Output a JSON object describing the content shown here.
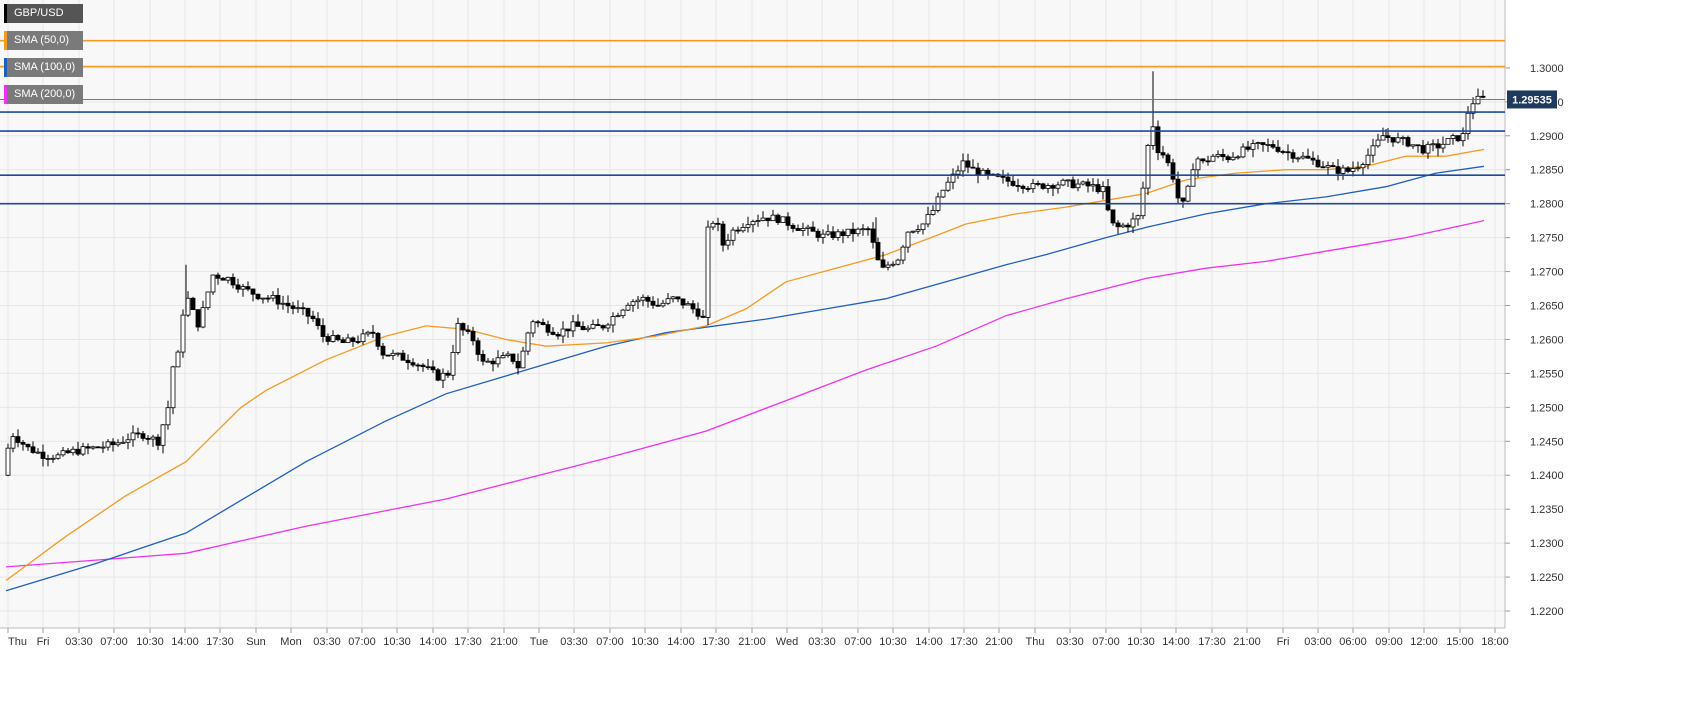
{
  "chart_data": {
    "type": "candlestick",
    "instrument": "GBP/USD",
    "ylim": [
      1.2175,
      1.31
    ],
    "y_ticks": [
      "1.2200",
      "1.2250",
      "1.2300",
      "1.2350",
      "1.2400",
      "1.2450",
      "1.2500",
      "1.2550",
      "1.2600",
      "1.2650",
      "1.2700",
      "1.2750",
      "1.2800",
      "1.2850",
      "1.2900",
      "1.2950",
      "1.3000"
    ],
    "x_ticks": [
      "Thu",
      "Fri",
      "03:30",
      "07:00",
      "10:30",
      "14:00",
      "17:30",
      "Sun",
      "Mon",
      "03:30",
      "07:00",
      "10:30",
      "14:00",
      "17:30",
      "21:00",
      "Tue",
      "03:30",
      "07:00",
      "10:30",
      "14:00",
      "17:30",
      "21:00",
      "Wed",
      "03:30",
      "07:00",
      "10:30",
      "14:00",
      "17:30",
      "21:00",
      "Thu",
      "03:30",
      "07:00",
      "10:30",
      "14:00",
      "17:30",
      "21:00",
      "Fri",
      "03:00",
      "06:00",
      "09:00",
      "12:00",
      "15:00",
      "18:00"
    ],
    "last_price": "1.29535",
    "grid": true,
    "colors": {
      "up_candle": "#ffffff",
      "down_candle": "#000000",
      "sma50": "#f59a23",
      "sma100": "#1f5fbf",
      "sma200": "#ee33ee",
      "orange_levels": "#f59a23",
      "blue_levels": "#1a4a9a",
      "price_tag": "#1f3a5f"
    },
    "legend": [
      {
        "label": "GBP/USD",
        "color": "#000000"
      },
      {
        "label": "SMA (50,0)",
        "color": "#f59a23"
      },
      {
        "label": "SMA (100,0)",
        "color": "#1f5fbf"
      },
      {
        "label": "SMA (200,0)",
        "color": "#ee33ee"
      }
    ],
    "horizontal_levels": [
      {
        "value": 1.304,
        "color": "#f59a23"
      },
      {
        "value": 1.3002,
        "color": "#f59a23"
      },
      {
        "value": 1.2935,
        "color": "#1a4a9a"
      },
      {
        "value": 1.2907,
        "color": "#1a4a9a"
      },
      {
        "value": 1.2842,
        "color": "#1a4a9a"
      },
      {
        "value": 1.28,
        "color": "#1a4a9a"
      }
    ],
    "price_path": [
      [
        0,
        1.24
      ],
      [
        5,
        1.244
      ],
      [
        10,
        1.246
      ],
      [
        25,
        1.244
      ],
      [
        40,
        1.243
      ],
      [
        55,
        1.2428
      ],
      [
        70,
        1.2435
      ],
      [
        90,
        1.244
      ],
      [
        110,
        1.2445
      ],
      [
        125,
        1.2455
      ],
      [
        140,
        1.246
      ],
      [
        155,
        1.245
      ],
      [
        165,
        1.25
      ],
      [
        170,
        1.256
      ],
      [
        176,
        1.258
      ],
      [
        182,
        1.267
      ],
      [
        190,
        1.264
      ],
      [
        196,
        1.262
      ],
      [
        203,
        1.266
      ],
      [
        210,
        1.2695
      ],
      [
        225,
        1.269
      ],
      [
        240,
        1.2675
      ],
      [
        255,
        1.2665
      ],
      [
        270,
        1.266
      ],
      [
        285,
        1.265
      ],
      [
        300,
        1.264
      ],
      [
        310,
        1.263
      ],
      [
        320,
        1.2605
      ],
      [
        340,
        1.2595
      ],
      [
        355,
        1.26
      ],
      [
        370,
        1.261
      ],
      [
        380,
        1.258
      ],
      [
        395,
        1.2575
      ],
      [
        410,
        1.2568
      ],
      [
        420,
        1.256
      ],
      [
        435,
        1.2545
      ],
      [
        445,
        1.255
      ],
      [
        455,
        1.262
      ],
      [
        462,
        1.261
      ],
      [
        470,
        1.26
      ],
      [
        480,
        1.2565
      ],
      [
        495,
        1.257
      ],
      [
        508,
        1.2575
      ],
      [
        515,
        1.256
      ],
      [
        522,
        1.259
      ],
      [
        528,
        1.263
      ],
      [
        540,
        1.262
      ],
      [
        555,
        1.261
      ],
      [
        570,
        1.262
      ],
      [
        585,
        1.2615
      ],
      [
        600,
        1.262
      ],
      [
        615,
        1.264
      ],
      [
        625,
        1.2655
      ],
      [
        640,
        1.266
      ],
      [
        655,
        1.265
      ],
      [
        670,
        1.266
      ],
      [
        685,
        1.265
      ],
      [
        695,
        1.264
      ],
      [
        700,
        1.263
      ],
      [
        705,
        1.276
      ],
      [
        712,
        1.278
      ],
      [
        720,
        1.274
      ],
      [
        730,
        1.276
      ],
      [
        745,
        1.2775
      ],
      [
        760,
        1.278
      ],
      [
        775,
        1.2778
      ],
      [
        790,
        1.2768
      ],
      [
        805,
        1.276
      ],
      [
        820,
        1.2752
      ],
      [
        835,
        1.2755
      ],
      [
        850,
        1.2758
      ],
      [
        865,
        1.2762
      ],
      [
        870,
        1.274
      ],
      [
        878,
        1.27
      ],
      [
        885,
        1.271
      ],
      [
        895,
        1.272
      ],
      [
        905,
        1.276
      ],
      [
        920,
        1.277
      ],
      [
        930,
        1.279
      ],
      [
        940,
        1.282
      ],
      [
        950,
        1.284
      ],
      [
        960,
        1.286
      ],
      [
        970,
        1.285
      ],
      [
        985,
        1.284
      ],
      [
        1000,
        1.2835
      ],
      [
        1015,
        1.283
      ],
      [
        1030,
        1.2825
      ],
      [
        1045,
        1.2828
      ],
      [
        1060,
        1.283
      ],
      [
        1075,
        1.2828
      ],
      [
        1090,
        1.2825
      ],
      [
        1100,
        1.282
      ],
      [
        1108,
        1.277
      ],
      [
        1115,
        1.2765
      ],
      [
        1125,
        1.277
      ],
      [
        1135,
        1.278
      ],
      [
        1142,
        1.284
      ],
      [
        1148,
        1.293
      ],
      [
        1155,
        1.288
      ],
      [
        1162,
        1.287
      ],
      [
        1170,
        1.284
      ],
      [
        1178,
        1.279
      ],
      [
        1185,
        1.282
      ],
      [
        1192,
        1.287
      ],
      [
        1200,
        1.286
      ],
      [
        1210,
        1.287
      ],
      [
        1225,
        1.2868
      ],
      [
        1240,
        1.2878
      ],
      [
        1255,
        1.2885
      ],
      [
        1270,
        1.2885
      ],
      [
        1285,
        1.2875
      ],
      [
        1300,
        1.2868
      ],
      [
        1315,
        1.286
      ],
      [
        1330,
        1.285
      ],
      [
        1345,
        1.2848
      ],
      [
        1358,
        1.286
      ],
      [
        1370,
        1.288
      ],
      [
        1380,
        1.29
      ],
      [
        1392,
        1.2895
      ],
      [
        1405,
        1.289
      ],
      [
        1420,
        1.288
      ],
      [
        1435,
        1.2885
      ],
      [
        1450,
        1.2895
      ],
      [
        1460,
        1.29
      ],
      [
        1465,
        1.2935
      ],
      [
        1470,
        1.295
      ],
      [
        1478,
        1.2955
      ]
    ],
    "sma50": [
      [
        0,
        1.2245
      ],
      [
        60,
        1.231
      ],
      [
        120,
        1.237
      ],
      [
        180,
        1.242
      ],
      [
        235,
        1.25
      ],
      [
        260,
        1.2525
      ],
      [
        320,
        1.257
      ],
      [
        380,
        1.2605
      ],
      [
        420,
        1.262
      ],
      [
        460,
        1.2615
      ],
      [
        500,
        1.26
      ],
      [
        540,
        1.259
      ],
      [
        600,
        1.2595
      ],
      [
        650,
        1.2605
      ],
      [
        700,
        1.262
      ],
      [
        740,
        1.2645
      ],
      [
        780,
        1.2685
      ],
      [
        830,
        1.2705
      ],
      [
        880,
        1.2725
      ],
      [
        925,
        1.275
      ],
      [
        960,
        1.277
      ],
      [
        1010,
        1.2785
      ],
      [
        1060,
        1.2795
      ],
      [
        1100,
        1.2805
      ],
      [
        1140,
        1.2815
      ],
      [
        1180,
        1.2835
      ],
      [
        1230,
        1.2845
      ],
      [
        1280,
        1.285
      ],
      [
        1320,
        1.285
      ],
      [
        1360,
        1.2855
      ],
      [
        1400,
        1.287
      ],
      [
        1440,
        1.287
      ],
      [
        1478,
        1.288
      ]
    ],
    "sma100": [
      [
        0,
        1.223
      ],
      [
        90,
        1.227
      ],
      [
        180,
        1.2315
      ],
      [
        300,
        1.242
      ],
      [
        380,
        1.248
      ],
      [
        440,
        1.252
      ],
      [
        520,
        1.2555
      ],
      [
        600,
        1.259
      ],
      [
        660,
        1.261
      ],
      [
        700,
        1.2618
      ],
      [
        760,
        1.263
      ],
      [
        820,
        1.2645
      ],
      [
        880,
        1.266
      ],
      [
        940,
        1.2685
      ],
      [
        1000,
        1.271
      ],
      [
        1040,
        1.2725
      ],
      [
        1100,
        1.275
      ],
      [
        1140,
        1.2765
      ],
      [
        1200,
        1.2785
      ],
      [
        1260,
        1.28
      ],
      [
        1320,
        1.281
      ],
      [
        1380,
        1.2825
      ],
      [
        1430,
        1.2845
      ],
      [
        1478,
        1.2855
      ]
    ],
    "sma200": [
      [
        0,
        1.2265
      ],
      [
        90,
        1.2275
      ],
      [
        180,
        1.2285
      ],
      [
        240,
        1.2305
      ],
      [
        300,
        1.2325
      ],
      [
        370,
        1.2345
      ],
      [
        440,
        1.2365
      ],
      [
        520,
        1.2395
      ],
      [
        600,
        1.2425
      ],
      [
        700,
        1.2465
      ],
      [
        780,
        1.251
      ],
      [
        860,
        1.2555
      ],
      [
        930,
        1.259
      ],
      [
        1000,
        1.2635
      ],
      [
        1060,
        1.266
      ],
      [
        1140,
        1.269
      ],
      [
        1200,
        1.2705
      ],
      [
        1260,
        1.2715
      ],
      [
        1320,
        1.273
      ],
      [
        1400,
        1.275
      ],
      [
        1478,
        1.2775
      ]
    ]
  }
}
